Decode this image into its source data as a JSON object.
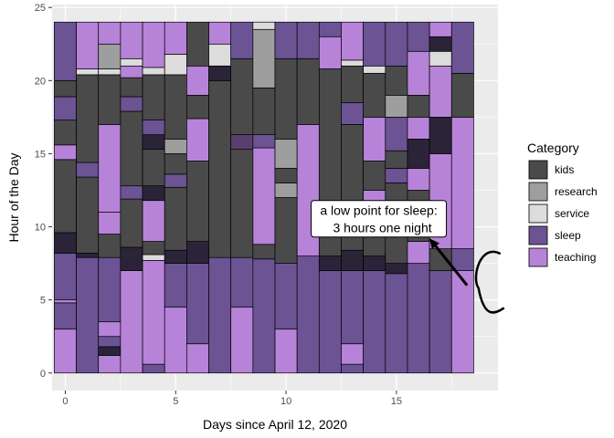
{
  "chart_data": {
    "type": "bar",
    "stacked": true,
    "title": "",
    "xlabel": "Days since April 12, 2020",
    "ylabel": "Hour of the Day",
    "xlim": [
      -0.6,
      19.6
    ],
    "ylim": [
      -1.2,
      25.2
    ],
    "x_ticks": [
      0,
      5,
      10,
      15
    ],
    "y_ticks": [
      0,
      5,
      10,
      15,
      20,
      25
    ],
    "grid": true,
    "legend": {
      "title": "Category",
      "placement": "right",
      "items": [
        {
          "name": "kids",
          "color": "#4a4a4a"
        },
        {
          "name": "research",
          "color": "#9e9e9e"
        },
        {
          "name": "service",
          "color": "#dcdcdc"
        },
        {
          "name": "sleep",
          "color": "#6b5394"
        },
        {
          "name": "teaching",
          "color": "#b783d8"
        }
      ]
    },
    "colors": {
      "kids": "#4a4a4a",
      "research": "#9e9e9e",
      "service": "#dcdcdc",
      "sleep": "#6b5394",
      "teaching": "#b783d8",
      "overlap": "#2b2438",
      "overlap_light": "#5a3f6e",
      "panel": "#ebebeb"
    },
    "days": [
      {
        "day": 0,
        "segments": [
          [
            "teaching",
            0,
            3
          ],
          [
            "sleep",
            3,
            4.8
          ],
          [
            "teaching",
            4.8,
            5
          ],
          [
            "sleep",
            5,
            8.2
          ],
          [
            "overlap",
            8.2,
            9.6
          ],
          [
            "kids",
            9.6,
            14.6
          ],
          [
            "teaching",
            14.6,
            15.6
          ],
          [
            "kids",
            15.6,
            17.3
          ],
          [
            "sleep",
            17.3,
            18.9
          ],
          [
            "kids",
            18.9,
            20
          ],
          [
            "sleep",
            20,
            24
          ]
        ]
      },
      {
        "day": 1,
        "segments": [
          [
            "sleep",
            0,
            7.9
          ],
          [
            "overlap",
            7.9,
            13.4
          ],
          [
            "kids",
            8.2,
            13.4
          ],
          [
            "sleep",
            13.4,
            14.4
          ],
          [
            "kids",
            14.4,
            20.4
          ],
          [
            "service",
            20.4,
            20.8
          ],
          [
            "teaching",
            20.8,
            24
          ]
        ]
      },
      {
        "day": 2,
        "segments": [
          [
            "teaching",
            0,
            1.2
          ],
          [
            "overlap",
            1.2,
            1.8
          ],
          [
            "sleep",
            1.8,
            2.5
          ],
          [
            "teaching",
            2.5,
            3.5
          ],
          [
            "sleep",
            3.5,
            7.9
          ],
          [
            "kids",
            7.9,
            9.5
          ],
          [
            "teaching",
            9.5,
            11
          ],
          [
            "teaching",
            11,
            17
          ],
          [
            "kids",
            17,
            20.4
          ],
          [
            "service",
            20.4,
            20.8
          ],
          [
            "research",
            20.8,
            22.5
          ],
          [
            "teaching",
            22.5,
            24
          ]
        ]
      },
      {
        "day": 3,
        "segments": [
          [
            "teaching",
            0,
            7
          ],
          [
            "overlap",
            7,
            8.6
          ],
          [
            "kids",
            8.6,
            11.9
          ],
          [
            "sleep",
            11.9,
            12.8
          ],
          [
            "kids",
            12.8,
            17.9
          ],
          [
            "sleep",
            17.9,
            18.9
          ],
          [
            "kids",
            18.9,
            20.2
          ],
          [
            "teaching",
            20.2,
            21
          ],
          [
            "service",
            21,
            21.5
          ],
          [
            "teaching",
            21.5,
            24
          ]
        ]
      },
      {
        "day": 4,
        "segments": [
          [
            "sleep",
            0,
            0.6
          ],
          [
            "teaching",
            0.6,
            7.7
          ],
          [
            "service",
            7.7,
            8.1
          ],
          [
            "kids",
            8.1,
            9
          ],
          [
            "teaching",
            9,
            11.8
          ],
          [
            "overlap",
            11.8,
            12.8
          ],
          [
            "kids",
            12.8,
            15.3
          ],
          [
            "overlap",
            15.3,
            16.3
          ],
          [
            "sleep",
            16.3,
            17.3
          ],
          [
            "kids",
            17.3,
            20.4
          ],
          [
            "service",
            20.4,
            20.9
          ],
          [
            "teaching",
            20.9,
            24
          ]
        ]
      },
      {
        "day": 5,
        "segments": [
          [
            "teaching",
            0,
            4.5
          ],
          [
            "sleep",
            4.5,
            7.5
          ],
          [
            "overlap",
            7.5,
            8.4
          ],
          [
            "kids",
            8.4,
            12.7
          ],
          [
            "sleep",
            12.7,
            13.6
          ],
          [
            "kids",
            13.6,
            15
          ],
          [
            "research",
            15,
            16
          ],
          [
            "kids",
            16,
            20.4
          ],
          [
            "service",
            20.4,
            21.8
          ],
          [
            "teaching",
            21.8,
            24
          ]
        ]
      },
      {
        "day": 6,
        "segments": [
          [
            "teaching",
            0,
            2
          ],
          [
            "sleep",
            2,
            7.5
          ],
          [
            "overlap",
            7.5,
            9
          ],
          [
            "kids",
            9,
            14.5
          ],
          [
            "teaching",
            14.5,
            17.4
          ],
          [
            "kids",
            17.4,
            19
          ],
          [
            "teaching",
            19,
            21
          ],
          [
            "kids",
            21,
            24
          ]
        ]
      },
      {
        "day": 7,
        "segments": [
          [
            "sleep",
            0,
            7.9
          ],
          [
            "kids",
            7.9,
            20
          ],
          [
            "overlap",
            20,
            21
          ],
          [
            "service",
            21,
            22.5
          ],
          [
            "teaching",
            22.5,
            24
          ]
        ]
      },
      {
        "day": 8,
        "segments": [
          [
            "teaching",
            0,
            4.5
          ],
          [
            "sleep",
            4.5,
            7.9
          ],
          [
            "kids",
            7.9,
            15.3
          ],
          [
            "overlap_light",
            15.3,
            16.3
          ],
          [
            "kids",
            16.3,
            21.5
          ],
          [
            "sleep",
            21.5,
            24
          ]
        ]
      },
      {
        "day": 9,
        "segments": [
          [
            "sleep",
            0,
            7.8
          ],
          [
            "kids",
            7.8,
            8.8
          ],
          [
            "teaching",
            8.8,
            15.4
          ],
          [
            "sleep",
            15.4,
            16.3
          ],
          [
            "kids",
            16.3,
            19.5
          ],
          [
            "research",
            19.5,
            23.5
          ],
          [
            "service",
            23.5,
            24
          ]
        ]
      },
      {
        "day": 10,
        "segments": [
          [
            "teaching",
            0,
            3
          ],
          [
            "sleep",
            3,
            7.5
          ],
          [
            "kids",
            7.5,
            12
          ],
          [
            "research",
            12,
            13
          ],
          [
            "kids",
            13,
            14
          ],
          [
            "research",
            14,
            16
          ],
          [
            "kids",
            16,
            21.5
          ],
          [
            "sleep",
            21.5,
            24
          ]
        ]
      },
      {
        "day": 11,
        "segments": [
          [
            "sleep",
            0,
            8
          ],
          [
            "teaching",
            8,
            17
          ],
          [
            "kids",
            17,
            21.5
          ],
          [
            "sleep",
            21.5,
            24
          ]
        ]
      },
      {
        "day": 12,
        "segments": [
          [
            "sleep",
            0,
            7
          ],
          [
            "overlap",
            7,
            8
          ],
          [
            "kids",
            8,
            20.8
          ],
          [
            "teaching",
            20.8,
            23
          ],
          [
            "sleep",
            23,
            24
          ]
        ]
      },
      {
        "day": 13,
        "segments": [
          [
            "sleep",
            0,
            0.6
          ],
          [
            "teaching",
            0.6,
            2
          ],
          [
            "sleep",
            2,
            7
          ],
          [
            "overlap",
            7,
            8.4
          ],
          [
            "kids",
            8.4,
            17
          ],
          [
            "sleep",
            17,
            18.5
          ],
          [
            "kids",
            18.5,
            21
          ],
          [
            "service",
            21,
            21.4
          ],
          [
            "teaching",
            21.4,
            24
          ]
        ]
      },
      {
        "day": 14,
        "segments": [
          [
            "sleep",
            0,
            7
          ],
          [
            "overlap",
            7,
            8
          ],
          [
            "kids",
            8,
            10
          ],
          [
            "teaching",
            10,
            12.5
          ],
          [
            "kids",
            12.5,
            14.5
          ],
          [
            "teaching",
            14.5,
            17.5
          ],
          [
            "kids",
            17.5,
            20.5
          ],
          [
            "service",
            20.5,
            21
          ],
          [
            "sleep",
            21,
            24
          ]
        ]
      },
      {
        "day": 15,
        "segments": [
          [
            "sleep",
            0,
            6.8
          ],
          [
            "overlap",
            6.8,
            7.5
          ],
          [
            "kids",
            7.5,
            13
          ],
          [
            "sleep",
            13,
            14
          ],
          [
            "kids",
            14,
            15.2
          ],
          [
            "sleep",
            15.2,
            17.5
          ],
          [
            "research",
            17.5,
            19
          ],
          [
            "kids",
            19,
            21
          ],
          [
            "sleep",
            21,
            24
          ]
        ]
      },
      {
        "day": 16,
        "segments": [
          [
            "sleep",
            0,
            7.5
          ],
          [
            "teaching",
            7.5,
            9
          ],
          [
            "kids",
            9,
            12.5
          ],
          [
            "teaching",
            12.5,
            14
          ],
          [
            "overlap",
            14,
            16
          ],
          [
            "teaching",
            16,
            17.5
          ],
          [
            "kids",
            17.5,
            19
          ],
          [
            "teaching",
            19,
            22
          ],
          [
            "sleep",
            22,
            24
          ]
        ]
      },
      {
        "day": 17,
        "segments": [
          [
            "sleep",
            0,
            7
          ],
          [
            "kids",
            7,
            8.5
          ],
          [
            "teaching",
            8.5,
            15
          ],
          [
            "overlap",
            15,
            17.5
          ],
          [
            "teaching",
            17.5,
            21
          ],
          [
            "service",
            21,
            22
          ],
          [
            "overlap",
            22,
            23
          ],
          [
            "teaching",
            23,
            24
          ]
        ]
      },
      {
        "day": 18,
        "segments": [
          [
            "teaching",
            0,
            7
          ],
          [
            "sleep",
            7,
            8.5
          ],
          [
            "teaching",
            8.5,
            17.5
          ],
          [
            "kids",
            17.5,
            20.5
          ],
          [
            "sleep",
            20.5,
            24
          ]
        ]
      }
    ],
    "annotation": {
      "text_lines": [
        "a low point for sleep:",
        "3 hours one night"
      ],
      "label_x": 14.2,
      "label_y": 10.3,
      "arrow_from": [
        18.2,
        6
      ],
      "arrow_to": [
        16.5,
        9.2
      ]
    }
  }
}
